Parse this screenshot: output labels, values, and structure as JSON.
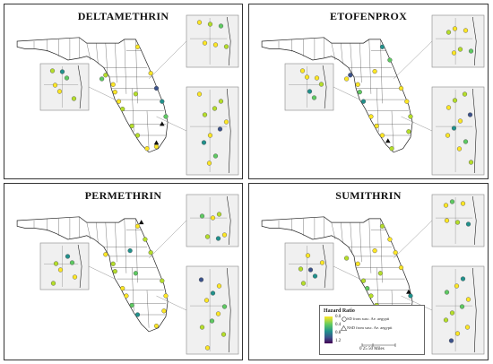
{
  "panels": [
    {
      "id": "deltamethrin",
      "title": "DELTAMETHRIN"
    },
    {
      "id": "etofenprox",
      "title": "ETOFENPROX"
    },
    {
      "id": "permethrin",
      "title": "PERMETHRIN"
    },
    {
      "id": "sumithrin",
      "title": "SUMITHRIN"
    }
  ],
  "legend": {
    "title": "Hazard Ratio",
    "ticks": [
      "0.0",
      "0.4",
      "0.8",
      "1.2"
    ],
    "circle_label": "SD from susc. Ae. aegypti",
    "triangle_label": "NSD from susc. Ae. aegypti",
    "scale_label": "0  25  50 Miles"
  },
  "colors": {
    "yellow": "#fde725",
    "light_green": "#b5de2b",
    "green": "#5ec962",
    "teal": "#21918c",
    "blue": "#3b528b",
    "purple": "#440154",
    "inset_bg": "#f0f0f0"
  }
}
